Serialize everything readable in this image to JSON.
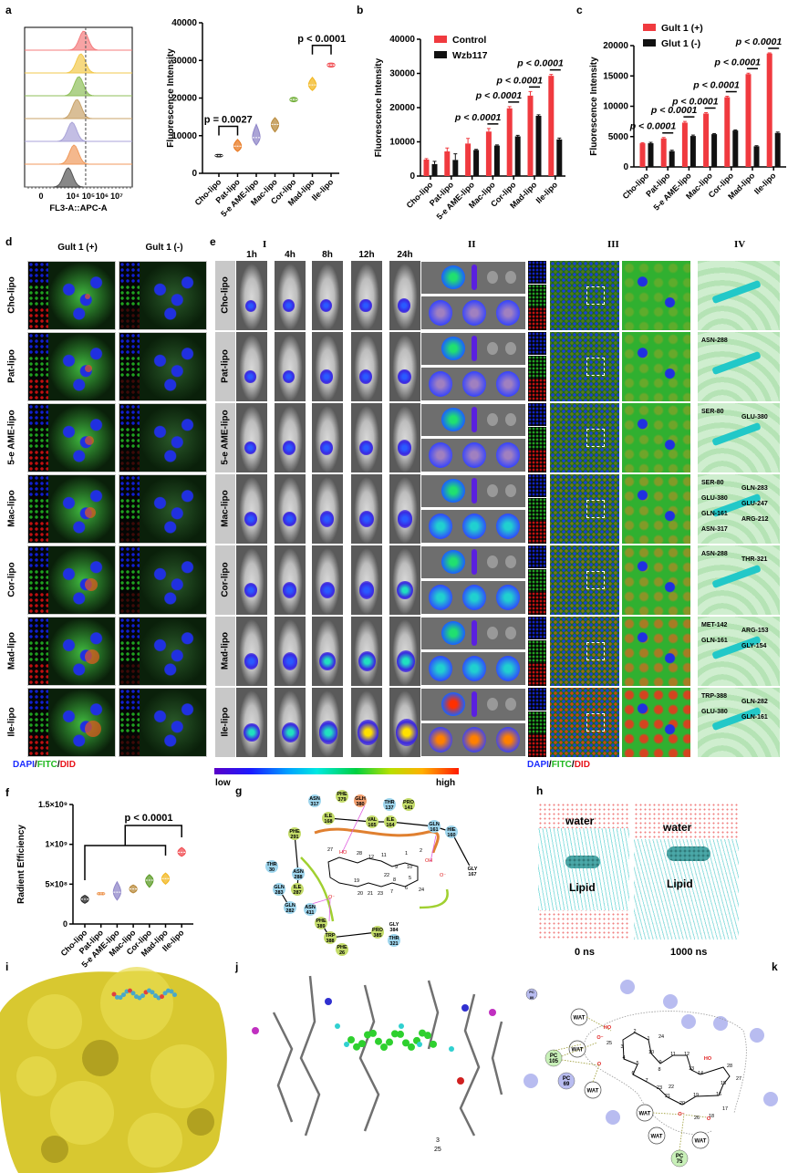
{
  "panel_labels": {
    "a": "a",
    "b": "b",
    "c": "c",
    "d": "d",
    "e": "e",
    "f": "f",
    "g": "g",
    "h": "h",
    "i": "i",
    "j": "j",
    "k": "k"
  },
  "categories": [
    "Cho-lipo",
    "Pat-lipo",
    "5-e AME-lipo",
    "Mac-lipo",
    "Cor-lipo",
    "Mad-lipo",
    "Ile-lipo"
  ],
  "panel_a_flow": {
    "xlabel": "FL3-A::APC-A",
    "xticks": [
      "0",
      "10⁴",
      "10⁵",
      "10⁶",
      "10⁷"
    ],
    "peaks_log10": [
      3.8,
      4.1,
      4.0,
      4.25,
      4.35,
      4.45,
      4.6
    ],
    "colors": [
      "#555555",
      "#f09a5c",
      "#a9a3d8",
      "#c9a36a",
      "#8fbf5a",
      "#f2c94c",
      "#f47c7e"
    ],
    "reference_line_log10": 4.7
  },
  "chart_data": [
    {
      "type": "violin",
      "panel": "a",
      "ylabel": "Fluorescence Intensity",
      "ylim": [
        0,
        40000
      ],
      "yticks": [
        "0",
        "10000",
        "20000",
        "30000",
        "40000"
      ],
      "categories": [
        "Cho-lipo",
        "Pat-lipo",
        "5-e AME-lipo",
        "Mac-lipo",
        "Cor-lipo",
        "Mad-lipo",
        "Ile-lipo"
      ],
      "values": [
        4700,
        7200,
        9500,
        13000,
        19600,
        23500,
        28800
      ],
      "ranges": [
        [
          4400,
          5000
        ],
        [
          5800,
          9000
        ],
        [
          7500,
          13000
        ],
        [
          11000,
          14800
        ],
        [
          19000,
          20200
        ],
        [
          22000,
          25500
        ],
        [
          28200,
          29300
        ]
      ],
      "colors": [
        "#111111",
        "#e8771e",
        "#8f86c8",
        "#b8893a",
        "#6aaa2e",
        "#f2b51b",
        "#f04a4f"
      ],
      "annotations": [
        {
          "text": "p = 0.0027",
          "from": 0,
          "to": 1,
          "level": 12500
        },
        {
          "text": "p < 0.0001",
          "from": 5,
          "to": 6,
          "level": 34000
        }
      ]
    },
    {
      "type": "bar",
      "panel": "b",
      "ylabel": "Fluorescence Intensity",
      "ylim": [
        0,
        40000
      ],
      "yticks": [
        "0",
        "10000",
        "20000",
        "30000",
        "40000"
      ],
      "categories": [
        "Cho-lipo",
        "Pat-lipo",
        "5-e AME-lipo",
        "Mac-lipo",
        "Cor-lipo",
        "Mad-lipo",
        "Ile-lipo"
      ],
      "series": [
        {
          "name": "Control",
          "color": "#f03a3f",
          "values": [
            4800,
            7200,
            9500,
            13000,
            19800,
            23500,
            29300
          ],
          "errors": [
            300,
            1000,
            1500,
            900,
            500,
            1200,
            400
          ]
        },
        {
          "name": "Wzb117",
          "color": "#111111",
          "values": [
            3500,
            4700,
            7600,
            8900,
            11600,
            17600,
            10700
          ],
          "errors": [
            800,
            1800,
            200,
            200,
            300,
            300,
            400
          ]
        }
      ],
      "legend": "top-left",
      "annotations": [
        {
          "text": "p < 0.0001",
          "category": 3
        },
        {
          "text": "p < 0.0001",
          "category": 4
        },
        {
          "text": "p < 0.0001",
          "category": 5
        },
        {
          "text": "p < 0.0001",
          "category": 6
        }
      ]
    },
    {
      "type": "bar",
      "panel": "c",
      "ylabel": "Fluorescence Intensity",
      "ylim": [
        0,
        20000
      ],
      "yticks": [
        "0",
        "5000",
        "10000",
        "15000",
        "20000"
      ],
      "categories": [
        "Cho-lipo",
        "Pat-lipo",
        "5-e AME-lipo",
        "Mac-lipo",
        "Cor-lipo",
        "Mad-lipo",
        "Ile-lipo"
      ],
      "series": [
        {
          "name": "Gult 1 (+)",
          "color": "#f03a3f",
          "values": [
            3900,
            4700,
            7300,
            8800,
            11500,
            15300,
            18700
          ],
          "errors": [
            100,
            150,
            200,
            150,
            150,
            150,
            100
          ]
        },
        {
          "name": "Glut 1 (-)",
          "color": "#111111",
          "values": [
            3900,
            2600,
            5100,
            5400,
            6000,
            3400,
            5600
          ],
          "errors": [
            150,
            150,
            150,
            100,
            100,
            100,
            150
          ]
        }
      ],
      "legend": "top-left",
      "annotations": [
        {
          "text": "p < 0.0001",
          "category": 1
        },
        {
          "text": "p < 0.0001",
          "category": 2
        },
        {
          "text": "p < 0.0001",
          "category": 3
        },
        {
          "text": "p < 0.0001",
          "category": 4
        },
        {
          "text": "p < 0.0001",
          "category": 5
        },
        {
          "text": "p < 0.0001",
          "category": 6
        }
      ]
    },
    {
      "type": "violin",
      "panel": "f",
      "ylabel": "Radient Efficiency",
      "ylim": [
        0,
        1500000000
      ],
      "yticks": [
        "0",
        "5×10⁸",
        "1×10⁹",
        "1.5×10⁹"
      ],
      "categories": [
        "Cho-lipo",
        "Pat-lipo",
        "5-e AME-lipo",
        "Mac-lipo",
        "Cor-lipo",
        "Mad-lipo",
        "Ile-lipo"
      ],
      "values": [
        310000000,
        380000000,
        400000000,
        440000000,
        550000000,
        570000000,
        900000000
      ],
      "ranges": [
        [
          260000000,
          360000000
        ],
        [
          370000000,
          390000000
        ],
        [
          300000000,
          530000000
        ],
        [
          390000000,
          490000000
        ],
        [
          460000000,
          620000000
        ],
        [
          500000000,
          640000000
        ],
        [
          850000000,
          960000000
        ]
      ],
      "colors": [
        "#222222",
        "#e8771e",
        "#8f86c8",
        "#b8893a",
        "#5a9a24",
        "#f2b51b",
        "#f04a4f"
      ],
      "annotations": [
        {
          "text": "p < 0.0001",
          "from": 0,
          "to": 6
        }
      ]
    }
  ],
  "panel_d": {
    "col_headers": [
      "Gult 1 (+)",
      "Gult 1 (-)"
    ],
    "legend": {
      "dapi": "DAPI",
      "fitc": "FITC",
      "did": "DID",
      "sep": "/"
    }
  },
  "panel_e": {
    "roman": [
      "I",
      "II",
      "III",
      "IV"
    ],
    "timepoints": [
      "1h",
      "4h",
      "8h",
      "12h",
      "24h"
    ],
    "colorbar": {
      "low": "low",
      "high": "high"
    },
    "legend": {
      "dapi": "DAPI",
      "fitc": "FITC",
      "did": "DID",
      "sep": "/"
    },
    "docking_labels": [
      [],
      [
        "ASN-288"
      ],
      [
        "SER-80",
        "GLU-380"
      ],
      [
        "SER-80",
        "GLN-283",
        "GLU-380",
        "GLU-247",
        "GLN-161",
        "ARG-212",
        "ASN-317"
      ],
      [
        "ASN-288",
        "THR-321"
      ],
      [
        "MET-142",
        "ARG-153",
        "GLN-161",
        "GLY-154"
      ],
      [
        "TRP-388",
        "GLN-282",
        "GLU-380",
        "GLN-161"
      ]
    ],
    "uptake_level": [
      0.25,
      0.3,
      0.35,
      0.45,
      0.5,
      0.65,
      0.9
    ]
  },
  "panel_g": {
    "residues": [
      "ASN\n317",
      "PHE\n379",
      "GLH\n380",
      "THR\n137",
      "PRO\n141",
      "ILE\n168",
      "VAL\n165",
      "ILE\n164",
      "GLN\n161",
      "HIE\n160",
      "GLY\n167",
      "PHE\n291",
      "THR\n30",
      "ASN\n288",
      "ILE\n287",
      "GLN\n283",
      "GLN\n282",
      "ASN\n411",
      "PHE\n389",
      "TRP\n388",
      "GLY\n384",
      "PRO\n385",
      "THR\n321",
      "PHE\n26"
    ],
    "atoms": [
      "27",
      "28",
      "12",
      "11",
      "1",
      "2",
      "10",
      "9",
      "5",
      "8",
      "22",
      "19",
      "6",
      "7",
      "24",
      "20",
      "21",
      "23",
      "HO",
      "OH",
      "O⁻",
      "O⁻"
    ]
  },
  "panel_h": {
    "top_label": "water",
    "mid_label": "Lipid",
    "times": [
      "0 ns",
      "1000 ns"
    ]
  },
  "panel_j": {
    "labels": [
      "3",
      "25"
    ]
  },
  "panel_k": {
    "wat_label": "WAT",
    "pc": [
      "PC\n80",
      "PC\n105",
      "PC\n69",
      "PC\n75"
    ],
    "atoms": [
      "2",
      "1",
      "24",
      "10",
      "11",
      "12",
      "9",
      "3",
      "25",
      "4",
      "5",
      "6",
      "7",
      "8",
      "13",
      "14",
      "28",
      "15",
      "27",
      "22",
      "23",
      "21",
      "19",
      "16",
      "20",
      "26",
      "18",
      "17",
      "HO",
      "HO",
      "O⁻",
      "O",
      "O⁻",
      "O"
    ]
  }
}
